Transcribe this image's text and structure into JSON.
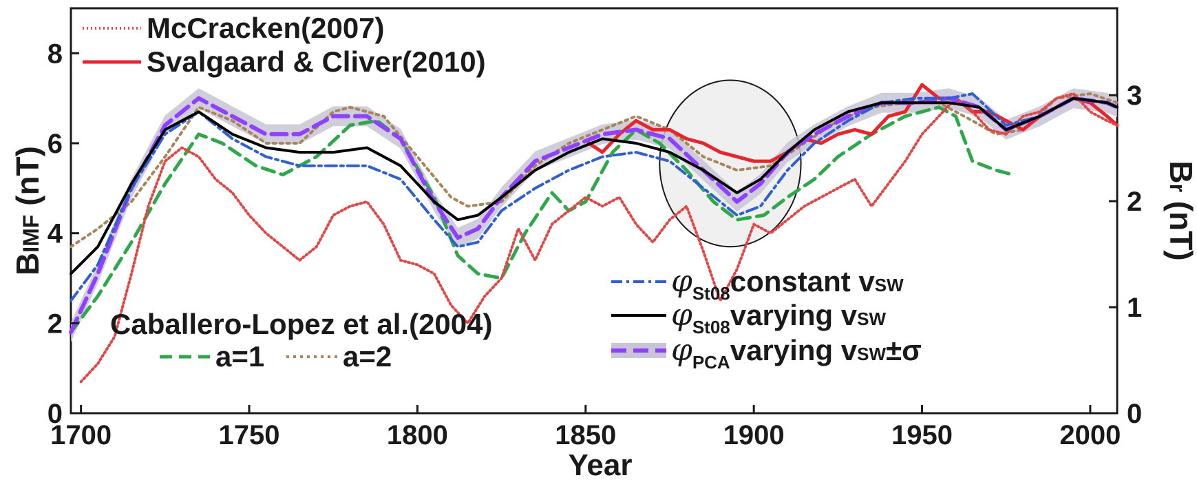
{
  "chart_data": {
    "type": "line",
    "xlabel": "Year",
    "ylabel_left": {
      "main": "B",
      "sub": "IMF",
      "unit": " (nT)"
    },
    "ylabel_right": {
      "main": "B",
      "sub": "r",
      "unit": " (nT)"
    },
    "xlim": [
      1697,
      2008
    ],
    "ylim": [
      0,
      9
    ],
    "xticks": [
      1700,
      1750,
      1800,
      1850,
      1900,
      1950,
      2000
    ],
    "yticks_left": [
      0,
      2,
      4,
      6,
      8
    ],
    "ylim_right": [
      0,
      3.82
    ],
    "yticks_right": [
      0,
      1,
      2,
      3
    ],
    "grid": false,
    "series": [
      {
        "key": "caballero_a2",
        "color": "#a8845a",
        "points": [
          [
            1697,
            3.7
          ],
          [
            1705,
            4.1
          ],
          [
            1715,
            4.7
          ],
          [
            1725,
            5.7
          ],
          [
            1735,
            6.8
          ],
          [
            1745,
            6.5
          ],
          [
            1755,
            6.0
          ],
          [
            1765,
            6.0
          ],
          [
            1775,
            6.7
          ],
          [
            1780,
            6.8
          ],
          [
            1790,
            6.6
          ],
          [
            1800,
            5.7
          ],
          [
            1810,
            4.8
          ],
          [
            1815,
            4.6
          ],
          [
            1825,
            4.7
          ],
          [
            1835,
            5.5
          ],
          [
            1845,
            6.0
          ],
          [
            1855,
            6.3
          ],
          [
            1865,
            6.6
          ],
          [
            1875,
            6.3
          ],
          [
            1885,
            5.7
          ],
          [
            1895,
            5.4
          ],
          [
            1905,
            5.5
          ],
          [
            1915,
            6.0
          ],
          [
            1925,
            6.5
          ],
          [
            1935,
            6.8
          ],
          [
            1945,
            6.9
          ],
          [
            1955,
            6.9
          ],
          [
            1965,
            6.5
          ],
          [
            1972,
            6.2
          ],
          [
            1980,
            6.3
          ],
          [
            1990,
            7.0
          ],
          [
            2000,
            7.1
          ],
          [
            2008,
            6.9
          ]
        ]
      },
      {
        "key": "caballero_a1",
        "color": "#2ea84a",
        "points": [
          [
            1697,
            1.8
          ],
          [
            1705,
            2.6
          ],
          [
            1715,
            3.8
          ],
          [
            1725,
            5.1
          ],
          [
            1735,
            6.2
          ],
          [
            1742,
            6.0
          ],
          [
            1752,
            5.5
          ],
          [
            1760,
            5.3
          ],
          [
            1770,
            5.7
          ],
          [
            1780,
            6.4
          ],
          [
            1788,
            6.5
          ],
          [
            1795,
            6.1
          ],
          [
            1805,
            4.8
          ],
          [
            1812,
            3.5
          ],
          [
            1818,
            3.1
          ],
          [
            1825,
            3.0
          ],
          [
            1832,
            4.0
          ],
          [
            1840,
            4.9
          ],
          [
            1845,
            4.5
          ],
          [
            1850,
            4.7
          ],
          [
            1858,
            5.8
          ],
          [
            1865,
            6.3
          ],
          [
            1872,
            6.0
          ],
          [
            1880,
            5.4
          ],
          [
            1888,
            4.7
          ],
          [
            1895,
            4.3
          ],
          [
            1903,
            4.4
          ],
          [
            1910,
            4.8
          ],
          [
            1918,
            5.2
          ],
          [
            1925,
            5.7
          ],
          [
            1935,
            6.2
          ],
          [
            1945,
            6.6
          ],
          [
            1955,
            6.8
          ],
          [
            1960,
            6.6
          ],
          [
            1965,
            5.6
          ],
          [
            1972,
            5.4
          ],
          [
            1977,
            5.3
          ]
        ]
      },
      {
        "key": "svalgaard",
        "color": "#e8242c",
        "points": [
          [
            1851,
            6.0
          ],
          [
            1855,
            5.8
          ],
          [
            1860,
            6.2
          ],
          [
            1865,
            6.5
          ],
          [
            1870,
            6.3
          ],
          [
            1875,
            6.3
          ],
          [
            1880,
            6.1
          ],
          [
            1885,
            6.0
          ],
          [
            1890,
            5.8
          ],
          [
            1895,
            5.7
          ],
          [
            1900,
            5.6
          ],
          [
            1905,
            5.6
          ],
          [
            1910,
            5.8
          ],
          [
            1915,
            6.1
          ],
          [
            1920,
            6.0
          ],
          [
            1925,
            6.2
          ],
          [
            1930,
            6.3
          ],
          [
            1935,
            6.2
          ],
          [
            1940,
            6.6
          ],
          [
            1945,
            6.7
          ],
          [
            1950,
            7.3
          ],
          [
            1955,
            7.0
          ],
          [
            1960,
            7.0
          ],
          [
            1965,
            6.7
          ],
          [
            1970,
            6.7
          ],
          [
            1975,
            6.5
          ],
          [
            1980,
            6.3
          ],
          [
            1985,
            6.6
          ],
          [
            1990,
            6.8
          ],
          [
            1995,
            7.0
          ],
          [
            2000,
            6.9
          ],
          [
            2005,
            6.6
          ],
          [
            2008,
            6.4
          ]
        ]
      },
      {
        "key": "mccracken",
        "color": "#e04848",
        "points": [
          [
            1700,
            0.7
          ],
          [
            1705,
            1.1
          ],
          [
            1710,
            1.7
          ],
          [
            1715,
            3.1
          ],
          [
            1720,
            4.6
          ],
          [
            1725,
            5.6
          ],
          [
            1730,
            5.9
          ],
          [
            1735,
            5.7
          ],
          [
            1740,
            5.2
          ],
          [
            1745,
            4.9
          ],
          [
            1750,
            4.4
          ],
          [
            1755,
            4.0
          ],
          [
            1760,
            3.7
          ],
          [
            1765,
            3.4
          ],
          [
            1770,
            3.7
          ],
          [
            1775,
            4.4
          ],
          [
            1780,
            4.6
          ],
          [
            1785,
            4.7
          ],
          [
            1790,
            4.2
          ],
          [
            1795,
            3.4
          ],
          [
            1800,
            3.3
          ],
          [
            1805,
            3.1
          ],
          [
            1810,
            2.4
          ],
          [
            1815,
            2.0
          ],
          [
            1820,
            2.6
          ],
          [
            1825,
            3.0
          ],
          [
            1830,
            4.1
          ],
          [
            1835,
            3.4
          ],
          [
            1840,
            4.2
          ],
          [
            1845,
            4.5
          ],
          [
            1850,
            4.8
          ],
          [
            1855,
            4.6
          ],
          [
            1860,
            4.8
          ],
          [
            1865,
            4.2
          ],
          [
            1870,
            3.8
          ],
          [
            1875,
            4.3
          ],
          [
            1880,
            4.6
          ],
          [
            1885,
            3.6
          ],
          [
            1890,
            2.5
          ],
          [
            1895,
            3.2
          ],
          [
            1900,
            4.2
          ],
          [
            1905,
            4.0
          ],
          [
            1910,
            4.3
          ],
          [
            1915,
            4.6
          ],
          [
            1920,
            4.8
          ],
          [
            1925,
            5.0
          ],
          [
            1930,
            5.2
          ],
          [
            1935,
            4.6
          ],
          [
            1940,
            5.1
          ],
          [
            1945,
            5.6
          ],
          [
            1950,
            6.2
          ],
          [
            1955,
            6.6
          ],
          [
            1960,
            7.0
          ],
          [
            1965,
            6.7
          ],
          [
            1970,
            6.3
          ],
          [
            1975,
            6.2
          ],
          [
            1980,
            6.6
          ],
          [
            1985,
            6.7
          ],
          [
            1990,
            7.0
          ],
          [
            1995,
            7.1
          ],
          [
            2000,
            6.7
          ],
          [
            2005,
            6.5
          ],
          [
            2008,
            6.4
          ]
        ]
      },
      {
        "key": "phi_pca",
        "color": "#9040ff",
        "band_color": "#c9c5d6",
        "sigma": 0.22,
        "points": [
          [
            1697,
            1.8
          ],
          [
            1705,
            3.1
          ],
          [
            1715,
            5.0
          ],
          [
            1725,
            6.4
          ],
          [
            1735,
            7.0
          ],
          [
            1745,
            6.6
          ],
          [
            1755,
            6.2
          ],
          [
            1765,
            6.2
          ],
          [
            1775,
            6.6
          ],
          [
            1785,
            6.6
          ],
          [
            1795,
            6.1
          ],
          [
            1805,
            4.7
          ],
          [
            1812,
            3.9
          ],
          [
            1818,
            4.1
          ],
          [
            1825,
            4.8
          ],
          [
            1835,
            5.6
          ],
          [
            1845,
            5.9
          ],
          [
            1855,
            6.2
          ],
          [
            1865,
            6.3
          ],
          [
            1875,
            6.1
          ],
          [
            1885,
            5.4
          ],
          [
            1895,
            4.7
          ],
          [
            1902,
            5.1
          ],
          [
            1910,
            5.8
          ],
          [
            1918,
            6.2
          ],
          [
            1928,
            6.6
          ],
          [
            1938,
            6.9
          ],
          [
            1948,
            6.9
          ],
          [
            1958,
            7.0
          ],
          [
            1967,
            6.8
          ],
          [
            1975,
            6.3
          ],
          [
            1985,
            6.6
          ],
          [
            1995,
            7.0
          ],
          [
            2005,
            6.9
          ],
          [
            2008,
            6.8
          ]
        ]
      },
      {
        "key": "phi_st08_const",
        "color": "#2f5fd0",
        "points": [
          [
            1697,
            2.5
          ],
          [
            1705,
            3.3
          ],
          [
            1715,
            5.0
          ],
          [
            1725,
            6.2
          ],
          [
            1735,
            6.7
          ],
          [
            1745,
            6.1
          ],
          [
            1755,
            5.7
          ],
          [
            1765,
            5.5
          ],
          [
            1775,
            5.5
          ],
          [
            1785,
            5.5
          ],
          [
            1795,
            5.2
          ],
          [
            1805,
            4.3
          ],
          [
            1812,
            3.7
          ],
          [
            1818,
            3.8
          ],
          [
            1825,
            4.5
          ],
          [
            1835,
            5.0
          ],
          [
            1845,
            5.4
          ],
          [
            1855,
            5.7
          ],
          [
            1865,
            5.8
          ],
          [
            1875,
            5.6
          ],
          [
            1885,
            5.0
          ],
          [
            1895,
            4.4
          ],
          [
            1902,
            4.6
          ],
          [
            1910,
            5.4
          ],
          [
            1918,
            6.0
          ],
          [
            1928,
            6.5
          ],
          [
            1938,
            6.9
          ],
          [
            1948,
            7.0
          ],
          [
            1958,
            7.0
          ],
          [
            1965,
            7.1
          ],
          [
            1975,
            6.4
          ],
          [
            1985,
            6.6
          ],
          [
            1995,
            7.0
          ],
          [
            2005,
            6.9
          ],
          [
            2008,
            6.8
          ]
        ]
      },
      {
        "key": "phi_st08_varying",
        "color": "#000000",
        "points": [
          [
            1697,
            3.1
          ],
          [
            1705,
            3.7
          ],
          [
            1715,
            5.1
          ],
          [
            1725,
            6.3
          ],
          [
            1735,
            6.7
          ],
          [
            1745,
            6.2
          ],
          [
            1755,
            5.9
          ],
          [
            1765,
            5.8
          ],
          [
            1775,
            5.8
          ],
          [
            1785,
            5.9
          ],
          [
            1795,
            5.5
          ],
          [
            1805,
            4.7
          ],
          [
            1812,
            4.3
          ],
          [
            1818,
            4.4
          ],
          [
            1825,
            4.8
          ],
          [
            1835,
            5.4
          ],
          [
            1845,
            5.8
          ],
          [
            1855,
            6.1
          ],
          [
            1865,
            6.0
          ],
          [
            1875,
            5.8
          ],
          [
            1885,
            5.4
          ],
          [
            1895,
            4.9
          ],
          [
            1902,
            5.2
          ],
          [
            1910,
            5.8
          ],
          [
            1918,
            6.3
          ],
          [
            1928,
            6.7
          ],
          [
            1938,
            6.9
          ],
          [
            1948,
            6.9
          ],
          [
            1958,
            6.9
          ],
          [
            1967,
            6.8
          ],
          [
            1975,
            6.3
          ],
          [
            1985,
            6.6
          ],
          [
            1995,
            7.0
          ],
          [
            2005,
            6.9
          ],
          [
            2008,
            6.8
          ]
        ]
      }
    ],
    "legend_top": [
      {
        "key": "mccracken",
        "label": "McCracken(2007)"
      },
      {
        "key": "svalgaard",
        "label": "Svalgaard & Cliver(2010)"
      }
    ],
    "legend_caballero": {
      "title": "Caballero-Lopez et al.(2004)",
      "items": [
        {
          "key": "caballero_a1",
          "label": "a=1"
        },
        {
          "key": "caballero_a2",
          "label": "a=2"
        }
      ]
    },
    "legend_right": [
      {
        "key": "phi_st08_const",
        "symbol": "φ",
        "sub": "St08",
        "text": "constant v",
        "text_sub": "SW",
        "suffix": ""
      },
      {
        "key": "phi_st08_varying",
        "symbol": "φ",
        "sub": "St08",
        "text": "varying v",
        "text_sub": "SW",
        "suffix": ""
      },
      {
        "key": "phi_pca",
        "symbol": "φ",
        "sub": "PCA",
        "text": "varying v",
        "text_sub": "SW",
        "suffix": "±σ"
      }
    ],
    "highlight_ellipse": {
      "cx": 1893,
      "cy": 5.55,
      "rx": 21,
      "ry": 1.85
    }
  }
}
